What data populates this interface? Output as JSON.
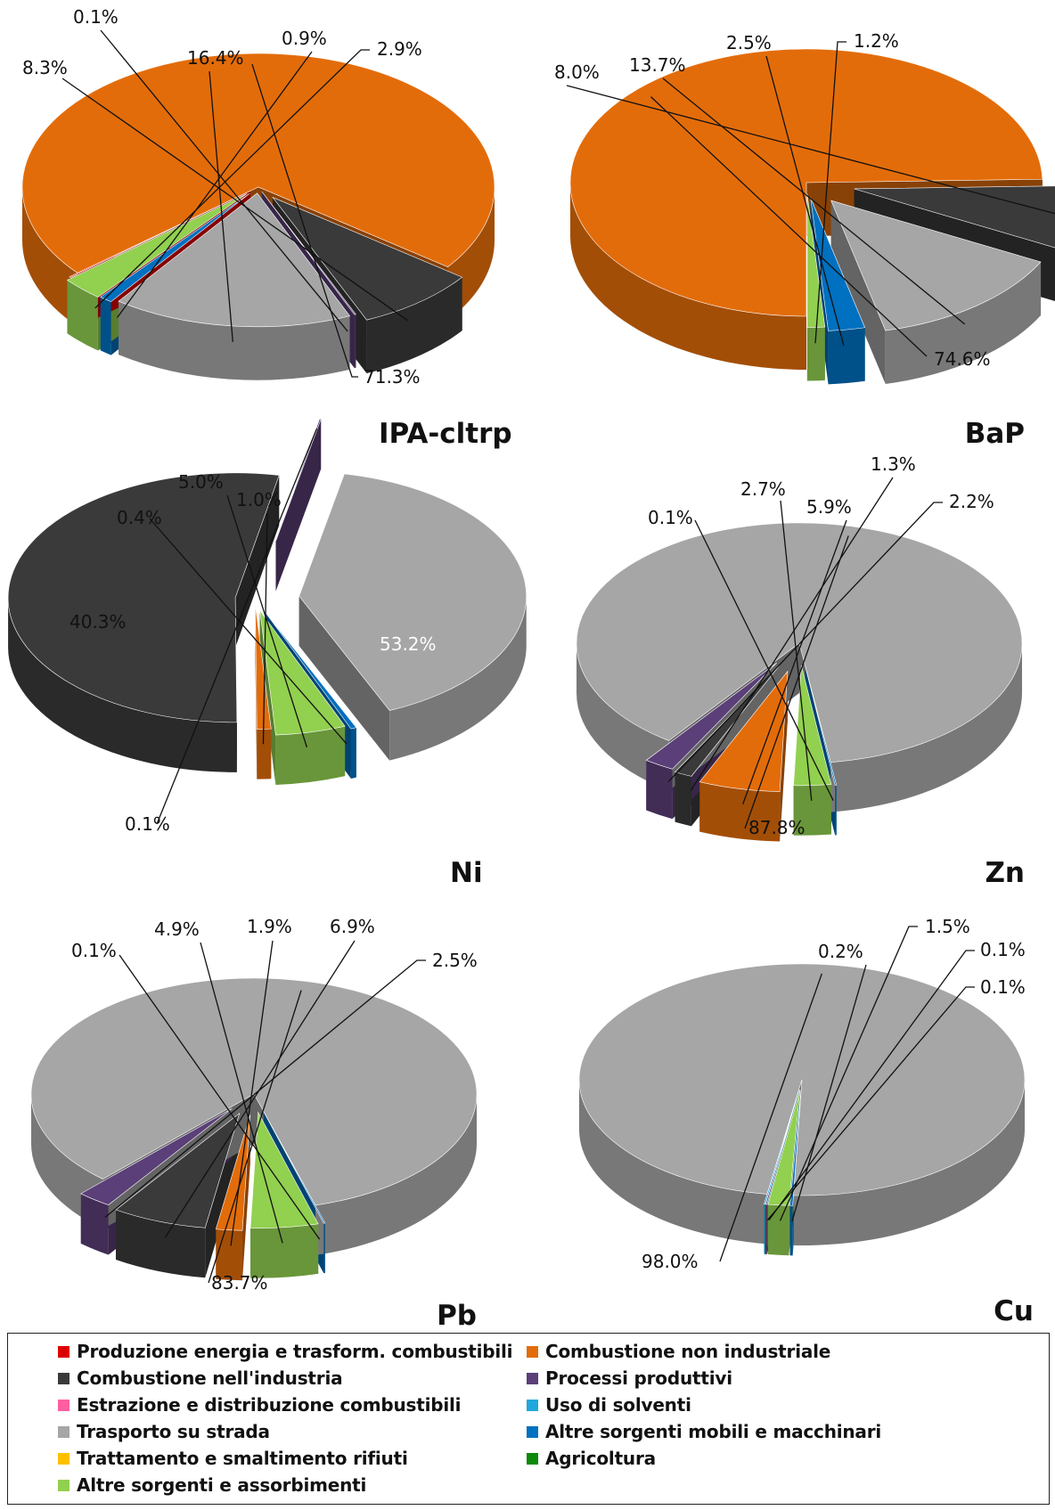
{
  "colors": {
    "energia": "#dd0000",
    "combustione_non_ind": "#e36c0a",
    "combustione_ind": "#3a3a3a",
    "processi": "#5b3f78",
    "estrazione": "#ff5fa0",
    "solventi": "#1ea8dc",
    "strada": "#a6a6a6",
    "mobili": "#0070c0",
    "rifiuti": "#ffc000",
    "agricoltura": "#0a8a0a",
    "altre": "#92d050"
  },
  "legend": [
    {
      "key": "energia",
      "label": "Produzione energia e trasform. combustibili"
    },
    {
      "key": "combustione_non_ind",
      "label": "Combustione non industriale"
    },
    {
      "key": "combustione_ind",
      "label": "Combustione nell'industria"
    },
    {
      "key": "processi",
      "label": "Processi produttivi"
    },
    {
      "key": "estrazione",
      "label": "Estrazione e distribuzione combustibili"
    },
    {
      "key": "solventi",
      "label": "Uso di solventi"
    },
    {
      "key": "strada",
      "label": "Trasporto su strada"
    },
    {
      "key": "mobili",
      "label": "Altre sorgenti mobili e macchinari"
    },
    {
      "key": "rifiuti",
      "label": "Trattamento e smaltimento rifiuti"
    },
    {
      "key": "agricoltura",
      "label": "Agricoltura"
    },
    {
      "key": "altre",
      "label": "Altre sorgenti e assorbimenti"
    }
  ],
  "chart_data": [
    {
      "type": "pie",
      "title": "IPA-cltrp",
      "slices": [
        {
          "key": "combustione_non_ind",
          "value": 71.3,
          "label": "71.3%"
        },
        {
          "key": "combustione_ind",
          "value": 8.3,
          "label": "8.3%"
        },
        {
          "key": "processi",
          "value": 0.1,
          "label": "0.1%"
        },
        {
          "key": "strada",
          "value": 16.4,
          "label": "16.4%"
        },
        {
          "key": "mobili",
          "value": 0.9,
          "label": "0.9%"
        },
        {
          "key": "altre",
          "value": 2.9,
          "label": "2.9%"
        },
        {
          "key": "energia",
          "value": 0.1,
          "label": ""
        }
      ]
    },
    {
      "type": "pie",
      "title": "BaP",
      "slices": [
        {
          "key": "combustione_non_ind",
          "value": 74.6,
          "label": "74.6%"
        },
        {
          "key": "combustione_ind",
          "value": 8.0,
          "label": "8.0%"
        },
        {
          "key": "strada",
          "value": 13.7,
          "label": "13.7%"
        },
        {
          "key": "mobili",
          "value": 2.5,
          "label": "2.5%"
        },
        {
          "key": "altre",
          "value": 1.2,
          "label": "1.2%"
        }
      ]
    },
    {
      "type": "pie",
      "title": "Ni",
      "slices": [
        {
          "key": "combustione_non_ind",
          "value": 1.0,
          "label": "1.0%"
        },
        {
          "key": "combustione_ind",
          "value": 53.2,
          "label": "53.2%"
        },
        {
          "key": "processi",
          "value": 0.1,
          "label": "0.1%"
        },
        {
          "key": "strada",
          "value": 40.3,
          "label": "40.3%"
        },
        {
          "key": "mobili",
          "value": 0.4,
          "label": "0.4%"
        },
        {
          "key": "altre",
          "value": 5.0,
          "label": "5.0%"
        }
      ]
    },
    {
      "type": "pie",
      "title": "Zn",
      "slices": [
        {
          "key": "combustione_non_ind",
          "value": 5.9,
          "label": "5.9%"
        },
        {
          "key": "combustione_ind",
          "value": 1.3,
          "label": "1.3%"
        },
        {
          "key": "processi",
          "value": 2.2,
          "label": "2.2%"
        },
        {
          "key": "strada",
          "value": 87.8,
          "label": "87.8%"
        },
        {
          "key": "mobili",
          "value": 0.1,
          "label": "0.1%"
        },
        {
          "key": "altre",
          "value": 2.7,
          "label": "2.7%"
        }
      ]
    },
    {
      "type": "pie",
      "title": "Pb",
      "slices": [
        {
          "key": "combustione_non_ind",
          "value": 1.9,
          "label": "1.9%"
        },
        {
          "key": "combustione_ind",
          "value": 6.9,
          "label": "6.9%"
        },
        {
          "key": "processi",
          "value": 2.5,
          "label": "2.5%"
        },
        {
          "key": "strada",
          "value": 83.7,
          "label": "83.7%"
        },
        {
          "key": "mobili",
          "value": 0.1,
          "label": "0.1%"
        },
        {
          "key": "altre",
          "value": 4.9,
          "label": "4.9%"
        }
      ]
    },
    {
      "type": "pie",
      "title": "Cu",
      "slices": [
        {
          "key": "strada",
          "value": 98.0,
          "label": "98.0%"
        },
        {
          "key": "mobili",
          "value": 0.2,
          "label": "0.2%"
        },
        {
          "key": "altre",
          "value": 1.5,
          "label": "1.5%"
        },
        {
          "key": "processi",
          "value": 0.1,
          "label": "0.1%"
        },
        {
          "key": "solventi",
          "value": 0.1,
          "label": "0.1%"
        }
      ]
    }
  ]
}
